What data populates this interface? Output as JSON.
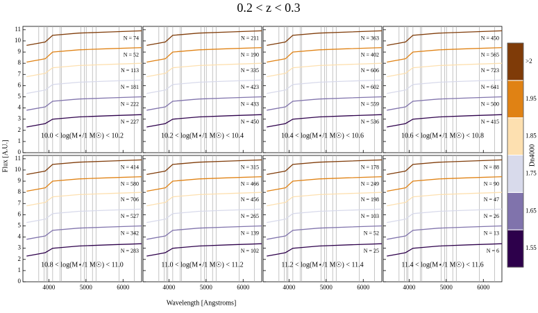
{
  "title": "0.2 < z < 0.3",
  "x_label": "Wavelength [Angstroms]",
  "y_label": "Flux [A.U.]",
  "reference_lines": [
    3727,
    3869,
    3934,
    3969,
    4102,
    4304,
    4341,
    4861,
    4959,
    5007,
    5175,
    5270,
    5890,
    6300
  ],
  "colorbar": {
    "label": "Dn4000",
    "ticks": [
      "1.55",
      "1.65",
      "1.75",
      "1.85",
      "1.95",
      ">2"
    ],
    "colors": [
      "#2d004b",
      "#8073ac",
      "#d8daeb",
      "#fde0b0",
      "#e08214",
      "#7f3b08"
    ]
  },
  "chart_data": [
    {
      "type": "line",
      "annotation": "10.0 < log(M⋆/1 M☉) < 10.2",
      "x": [
        3400,
        3900,
        4100,
        4800,
        5600,
        6500
      ],
      "xlim": [
        3300,
        6500
      ],
      "xticks": [
        4000,
        5000,
        6000
      ],
      "ylim": [
        0,
        11.3
      ],
      "yticks": [
        0,
        1,
        2,
        3,
        4,
        5,
        6,
        7,
        8,
        9,
        10,
        11
      ],
      "series": [
        {
          "name": "N = 74",
          "color": "#7f3b08",
          "values": [
            9.6,
            9.9,
            10.5,
            10.7,
            10.8,
            10.9
          ]
        },
        {
          "name": "N = 52",
          "color": "#e08214",
          "values": [
            8.1,
            8.4,
            9.0,
            9.2,
            9.3,
            9.4
          ]
        },
        {
          "name": "N = 113",
          "color": "#fde0b0",
          "values": [
            6.8,
            7.1,
            7.6,
            7.8,
            7.9,
            8.0
          ]
        },
        {
          "name": "N = 181",
          "color": "#d8daeb",
          "values": [
            5.3,
            5.6,
            6.1,
            6.3,
            6.4,
            6.5
          ]
        },
        {
          "name": "N = 222",
          "color": "#8073ac",
          "values": [
            3.8,
            4.1,
            4.6,
            4.8,
            4.9,
            5.0
          ]
        },
        {
          "name": "N = 227",
          "color": "#2d004b",
          "values": [
            2.3,
            2.6,
            3.0,
            3.2,
            3.3,
            3.4
          ]
        }
      ]
    },
    {
      "type": "line",
      "annotation": "10.2 < log(M⋆/1 M☉) < 10.4",
      "x": [
        3400,
        3900,
        4100,
        4800,
        5600,
        6500
      ],
      "xlim": [
        3300,
        6500
      ],
      "xticks": [
        4000,
        5000,
        6000
      ],
      "ylim": [
        0,
        11.3
      ],
      "yticks": [
        0,
        1,
        2,
        3,
        4,
        5,
        6,
        7,
        8,
        9,
        10,
        11
      ],
      "series": [
        {
          "name": "N = 211",
          "color": "#7f3b08",
          "values": [
            9.6,
            9.9,
            10.5,
            10.7,
            10.8,
            10.9
          ]
        },
        {
          "name": "N = 190",
          "color": "#e08214",
          "values": [
            8.1,
            8.4,
            9.0,
            9.2,
            9.3,
            9.4
          ]
        },
        {
          "name": "N = 335",
          "color": "#fde0b0",
          "values": [
            6.8,
            7.1,
            7.6,
            7.8,
            7.9,
            8.0
          ]
        },
        {
          "name": "N = 423",
          "color": "#d8daeb",
          "values": [
            5.3,
            5.6,
            6.1,
            6.3,
            6.4,
            6.5
          ]
        },
        {
          "name": "N = 433",
          "color": "#8073ac",
          "values": [
            3.8,
            4.1,
            4.6,
            4.8,
            4.9,
            5.0
          ]
        },
        {
          "name": "N = 450",
          "color": "#2d004b",
          "values": [
            2.3,
            2.6,
            3.0,
            3.2,
            3.3,
            3.4
          ]
        }
      ]
    },
    {
      "type": "line",
      "annotation": "10.4 < log(M⋆/1 M☉) < 10.6",
      "x": [
        3400,
        3900,
        4100,
        4800,
        5600,
        6500
      ],
      "xlim": [
        3300,
        6500
      ],
      "xticks": [
        4000,
        5000,
        6000
      ],
      "ylim": [
        0,
        11.3
      ],
      "yticks": [
        0,
        1,
        2,
        3,
        4,
        5,
        6,
        7,
        8,
        9,
        10,
        11
      ],
      "series": [
        {
          "name": "N = 363",
          "color": "#7f3b08",
          "values": [
            9.6,
            9.9,
            10.5,
            10.7,
            10.8,
            10.9
          ]
        },
        {
          "name": "N = 402",
          "color": "#e08214",
          "values": [
            8.1,
            8.4,
            9.0,
            9.2,
            9.3,
            9.4
          ]
        },
        {
          "name": "N = 606",
          "color": "#fde0b0",
          "values": [
            6.8,
            7.1,
            7.6,
            7.8,
            7.9,
            8.0
          ]
        },
        {
          "name": "N = 602",
          "color": "#d8daeb",
          "values": [
            5.3,
            5.6,
            6.1,
            6.3,
            6.4,
            6.5
          ]
        },
        {
          "name": "N = 559",
          "color": "#8073ac",
          "values": [
            3.8,
            4.1,
            4.6,
            4.8,
            4.9,
            5.0
          ]
        },
        {
          "name": "N = 536",
          "color": "#2d004b",
          "values": [
            2.3,
            2.6,
            3.0,
            3.2,
            3.3,
            3.4
          ]
        }
      ]
    },
    {
      "type": "line",
      "annotation": "10.6 < log(M⋆/1 M☉) < 10.8",
      "x": [
        3400,
        3900,
        4100,
        4800,
        5600,
        6500
      ],
      "xlim": [
        3300,
        6500
      ],
      "xticks": [
        4000,
        5000,
        6000
      ],
      "ylim": [
        0,
        11.3
      ],
      "yticks": [
        0,
        1,
        2,
        3,
        4,
        5,
        6,
        7,
        8,
        9,
        10,
        11
      ],
      "series": [
        {
          "name": "N = 450",
          "color": "#7f3b08",
          "values": [
            9.6,
            9.9,
            10.5,
            10.7,
            10.8,
            10.9
          ]
        },
        {
          "name": "N = 565",
          "color": "#e08214",
          "values": [
            8.1,
            8.4,
            9.0,
            9.2,
            9.3,
            9.4
          ]
        },
        {
          "name": "N = 723",
          "color": "#fde0b0",
          "values": [
            6.8,
            7.1,
            7.6,
            7.8,
            7.9,
            8.0
          ]
        },
        {
          "name": "N = 641",
          "color": "#d8daeb",
          "values": [
            5.3,
            5.6,
            6.1,
            6.3,
            6.4,
            6.5
          ]
        },
        {
          "name": "N = 500",
          "color": "#8073ac",
          "values": [
            3.8,
            4.1,
            4.6,
            4.8,
            4.9,
            5.0
          ]
        },
        {
          "name": "N = 415",
          "color": "#2d004b",
          "values": [
            2.3,
            2.6,
            3.0,
            3.2,
            3.3,
            3.4
          ]
        }
      ]
    },
    {
      "type": "line",
      "annotation": "10.8 < log(M⋆/1 M☉) < 11.0",
      "x": [
        3400,
        3900,
        4100,
        4800,
        5600,
        6500
      ],
      "xlim": [
        3300,
        6500
      ],
      "xticks": [
        4000,
        5000,
        6000
      ],
      "ylim": [
        0,
        11.3
      ],
      "yticks": [
        0,
        1,
        2,
        3,
        4,
        5,
        6,
        7,
        8,
        9,
        10,
        11
      ],
      "series": [
        {
          "name": "N = 414",
          "color": "#7f3b08",
          "values": [
            9.6,
            9.9,
            10.5,
            10.7,
            10.8,
            10.9
          ]
        },
        {
          "name": "N = 580",
          "color": "#e08214",
          "values": [
            8.1,
            8.4,
            9.0,
            9.2,
            9.3,
            9.4
          ]
        },
        {
          "name": "N = 706",
          "color": "#fde0b0",
          "values": [
            6.8,
            7.1,
            7.6,
            7.8,
            7.9,
            8.0
          ]
        },
        {
          "name": "N = 527",
          "color": "#d8daeb",
          "values": [
            5.3,
            5.6,
            6.1,
            6.3,
            6.4,
            6.5
          ]
        },
        {
          "name": "N = 342",
          "color": "#8073ac",
          "values": [
            3.8,
            4.1,
            4.6,
            4.8,
            4.9,
            5.0
          ]
        },
        {
          "name": "N = 283",
          "color": "#2d004b",
          "values": [
            2.3,
            2.6,
            3.0,
            3.2,
            3.3,
            3.4
          ]
        }
      ]
    },
    {
      "type": "line",
      "annotation": "11.0 < log(M⋆/1 M☉) < 11.2",
      "x": [
        3400,
        3900,
        4100,
        4800,
        5600,
        6500
      ],
      "xlim": [
        3300,
        6500
      ],
      "xticks": [
        4000,
        5000,
        6000
      ],
      "ylim": [
        0,
        11.3
      ],
      "yticks": [
        0,
        1,
        2,
        3,
        4,
        5,
        6,
        7,
        8,
        9,
        10,
        11
      ],
      "series": [
        {
          "name": "N = 315",
          "color": "#7f3b08",
          "values": [
            9.6,
            9.9,
            10.5,
            10.7,
            10.8,
            10.9
          ]
        },
        {
          "name": "N = 466",
          "color": "#e08214",
          "values": [
            8.1,
            8.4,
            9.0,
            9.2,
            9.3,
            9.4
          ]
        },
        {
          "name": "N = 456",
          "color": "#fde0b0",
          "values": [
            6.8,
            7.1,
            7.6,
            7.8,
            7.9,
            8.0
          ]
        },
        {
          "name": "N = 265",
          "color": "#d8daeb",
          "values": [
            5.3,
            5.6,
            6.1,
            6.3,
            6.4,
            6.5
          ]
        },
        {
          "name": "N = 139",
          "color": "#8073ac",
          "values": [
            3.8,
            4.1,
            4.6,
            4.8,
            4.9,
            5.0
          ]
        },
        {
          "name": "N = 102",
          "color": "#2d004b",
          "values": [
            2.3,
            2.6,
            3.0,
            3.2,
            3.3,
            3.4
          ]
        }
      ]
    },
    {
      "type": "line",
      "annotation": "11.2 < log(M⋆/1 M☉) < 11.4",
      "x": [
        3400,
        3900,
        4100,
        4800,
        5600,
        6500
      ],
      "xlim": [
        3300,
        6500
      ],
      "xticks": [
        4000,
        5000,
        6000
      ],
      "ylim": [
        0,
        11.3
      ],
      "yticks": [
        0,
        1,
        2,
        3,
        4,
        5,
        6,
        7,
        8,
        9,
        10,
        11
      ],
      "series": [
        {
          "name": "N = 178",
          "color": "#7f3b08",
          "values": [
            9.6,
            9.9,
            10.5,
            10.7,
            10.8,
            10.9
          ]
        },
        {
          "name": "N = 249",
          "color": "#e08214",
          "values": [
            8.1,
            8.4,
            9.0,
            9.2,
            9.3,
            9.4
          ]
        },
        {
          "name": "N = 198",
          "color": "#fde0b0",
          "values": [
            6.8,
            7.1,
            7.6,
            7.8,
            7.9,
            8.0
          ]
        },
        {
          "name": "N = 103",
          "color": "#d8daeb",
          "values": [
            5.3,
            5.6,
            6.1,
            6.3,
            6.4,
            6.5
          ]
        },
        {
          "name": "N = 52",
          "color": "#8073ac",
          "values": [
            3.8,
            4.1,
            4.6,
            4.8,
            4.9,
            5.0
          ]
        },
        {
          "name": "N = 25",
          "color": "#2d004b",
          "values": [
            2.3,
            2.6,
            3.0,
            3.2,
            3.3,
            3.4
          ]
        }
      ]
    },
    {
      "type": "line",
      "annotation": "11.4 < log(M⋆/1 M☉) < 11.6",
      "x": [
        3400,
        3900,
        4100,
        4800,
        5600,
        6500
      ],
      "xlim": [
        3300,
        6500
      ],
      "xticks": [
        4000,
        5000,
        6000
      ],
      "ylim": [
        0,
        11.3
      ],
      "yticks": [
        0,
        1,
        2,
        3,
        4,
        5,
        6,
        7,
        8,
        9,
        10,
        11
      ],
      "series": [
        {
          "name": "N = 88",
          "color": "#7f3b08",
          "values": [
            9.6,
            9.9,
            10.5,
            10.7,
            10.8,
            10.9
          ]
        },
        {
          "name": "N = 90",
          "color": "#e08214",
          "values": [
            8.1,
            8.4,
            9.0,
            9.2,
            9.3,
            9.4
          ]
        },
        {
          "name": "N = 47",
          "color": "#fde0b0",
          "values": [
            6.8,
            7.1,
            7.6,
            7.8,
            7.9,
            8.0
          ]
        },
        {
          "name": "N = 26",
          "color": "#d8daeb",
          "values": [
            5.3,
            5.6,
            6.1,
            6.3,
            6.4,
            6.5
          ]
        },
        {
          "name": "N = 13",
          "color": "#8073ac",
          "values": [
            3.8,
            4.1,
            4.6,
            4.8,
            4.9,
            5.0
          ]
        },
        {
          "name": "N = 6",
          "color": "#2d004b",
          "values": [
            2.3,
            2.6,
            3.0,
            3.2,
            3.3,
            3.4
          ]
        }
      ]
    }
  ]
}
